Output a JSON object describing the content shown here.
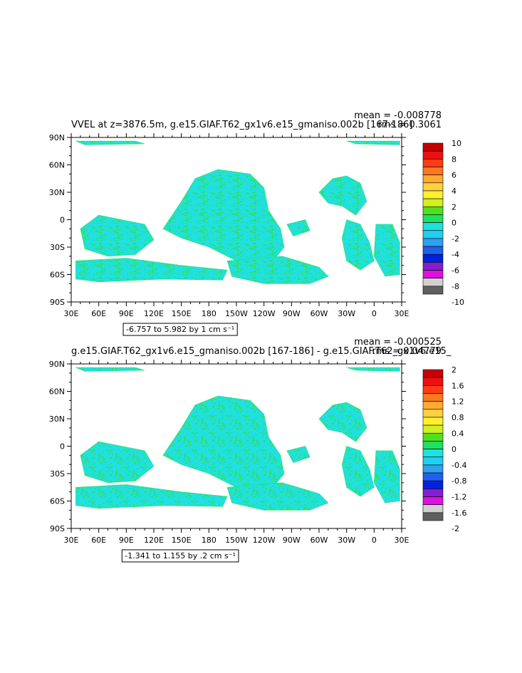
{
  "chart_data": [
    {
      "type": "heatmap",
      "title": "VVEL at z=3876.5m, g.e15.GIAF.T62_gx1v6.e15_gmaniso.002b [167-186]",
      "stat_mean": "mean = -0.008778",
      "stat_rms": "rms = 0.3061",
      "range_note": "-6.757 to 5.982 by 1 cm s⁻¹",
      "x_ticks": [
        "30E",
        "60E",
        "90E",
        "120E",
        "150E",
        "180",
        "150W",
        "120W",
        "90W",
        "60W",
        "30W",
        "0",
        "30E"
      ],
      "y_ticks": [
        "90N",
        "60N",
        "30N",
        "0",
        "30S",
        "60S",
        "90S"
      ],
      "xlim_lon_east": [
        30,
        390
      ],
      "ylim_lat": [
        -90,
        90
      ],
      "colorbar_levels": [
        "10",
        "8",
        "6",
        "4",
        "2",
        "0",
        "-2",
        "-4",
        "-6",
        "-8",
        "-10"
      ],
      "colorbar_colors": [
        "#c80000",
        "#ee1010",
        "#ff3c14",
        "#ff7820",
        "#ffaa30",
        "#ffd040",
        "#fff030",
        "#d0f020",
        "#50e020",
        "#20e060",
        "#20e0e0",
        "#20d0f0",
        "#30a0f0",
        "#2060f0",
        "#0020e0",
        "#8020d0",
        "#e010e0",
        "#d0d0d0",
        "#606060"
      ],
      "field_colors": [
        "#20e0e0",
        "#30e060"
      ]
    },
    {
      "type": "heatmap",
      "title": "g.e15.GIAF.T62_gx1v6.e15_gmaniso.002b [167-186] - g.e15.GIAF.T62_gx1v6.e15_",
      "stat_mean": "mean = -0.000525",
      "stat_rms": "rms = 0.04779",
      "range_note": "-1.341 to 1.155 by .2 cm s⁻¹",
      "x_ticks": [
        "30E",
        "60E",
        "90E",
        "120E",
        "150E",
        "180",
        "150W",
        "120W",
        "90W",
        "60W",
        "30W",
        "0",
        "30E"
      ],
      "y_ticks": [
        "90N",
        "60N",
        "30N",
        "0",
        "30S",
        "60S",
        "90S"
      ],
      "xlim_lon_east": [
        30,
        390
      ],
      "ylim_lat": [
        -90,
        90
      ],
      "colorbar_levels": [
        "2",
        "1.6",
        "1.2",
        "0.8",
        "0.4",
        "0",
        "-0.4",
        "-0.8",
        "-1.2",
        "-1.6",
        "-2"
      ],
      "colorbar_colors": [
        "#c80000",
        "#ee1010",
        "#ff3c14",
        "#ff7820",
        "#ffaa30",
        "#ffd040",
        "#fff030",
        "#d0f020",
        "#50e020",
        "#20e060",
        "#20e0e0",
        "#20d0f0",
        "#30a0f0",
        "#2060f0",
        "#0020e0",
        "#8020d0",
        "#e010e0",
        "#d0d0d0",
        "#606060"
      ],
      "field_colors": [
        "#20e0e0",
        "#30e060"
      ]
    }
  ]
}
